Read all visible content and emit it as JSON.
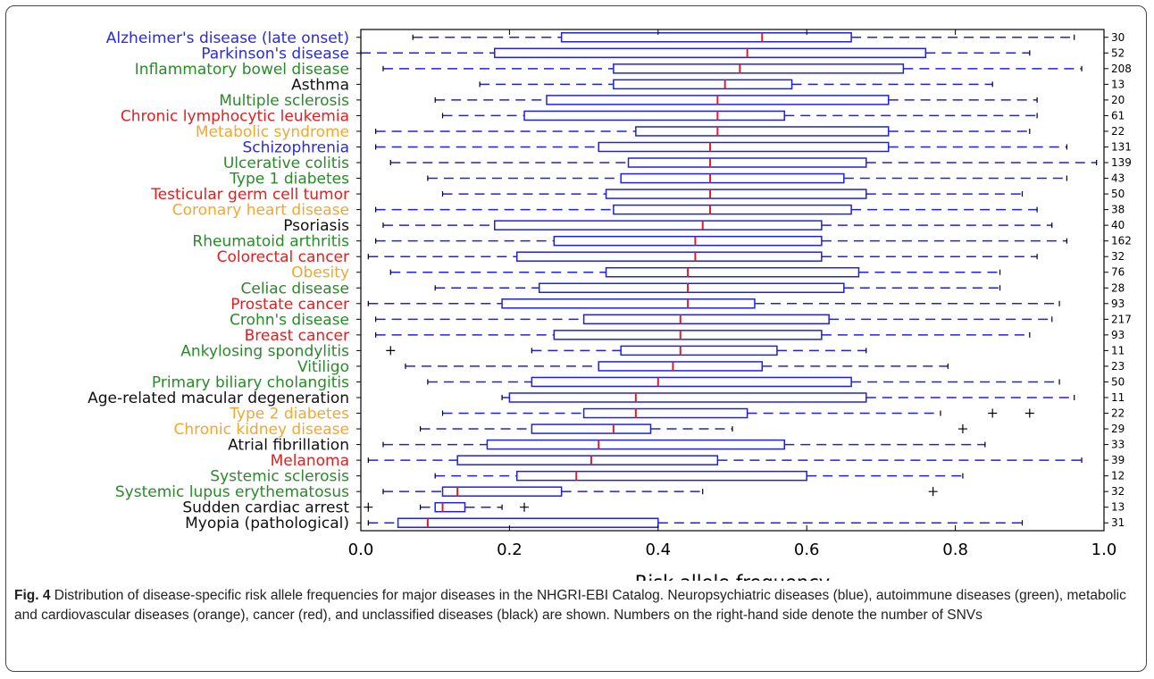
{
  "chart_data": {
    "type": "box",
    "xlabel": "Risk allele frequency",
    "xlim": [
      0.0,
      1.0
    ],
    "xticks": [
      "0.0",
      "0.2",
      "0.4",
      "0.6",
      "0.8",
      "1.0"
    ],
    "grid": false,
    "colors": {
      "neuropsychiatric": "#2a2ae0",
      "autoimmune": "#2a8a2a",
      "metabolic_cardiovascular": "#f0a830",
      "cancer": "#e02020",
      "unclassified": "#111111",
      "box": "#2020e0",
      "median": "#e02020"
    },
    "categories": [
      {
        "name": "Alzheimer's disease (late onset)",
        "group": "neuropsychiatric",
        "count": "30",
        "whislo": 0.07,
        "q1": 0.27,
        "med": 0.54,
        "q3": 0.66,
        "whishi": 0.96,
        "fliers": []
      },
      {
        "name": "Parkinson's disease",
        "group": "neuropsychiatric",
        "count": "52",
        "whislo": 0.0,
        "q1": 0.18,
        "med": 0.52,
        "q3": 0.76,
        "whishi": 0.9,
        "fliers": []
      },
      {
        "name": "Inflammatory bowel disease",
        "group": "autoimmune",
        "count": "208",
        "whislo": 0.03,
        "q1": 0.34,
        "med": 0.51,
        "q3": 0.73,
        "whishi": 0.97,
        "fliers": []
      },
      {
        "name": "Asthma",
        "group": "unclassified",
        "count": "13",
        "whislo": 0.16,
        "q1": 0.34,
        "med": 0.49,
        "q3": 0.58,
        "whishi": 0.85,
        "fliers": []
      },
      {
        "name": "Multiple sclerosis",
        "group": "autoimmune",
        "count": "20",
        "whislo": 0.1,
        "q1": 0.25,
        "med": 0.48,
        "q3": 0.71,
        "whishi": 0.91,
        "fliers": []
      },
      {
        "name": "Chronic lymphocytic leukemia",
        "group": "cancer",
        "count": "61",
        "whislo": 0.11,
        "q1": 0.22,
        "med": 0.48,
        "q3": 0.57,
        "whishi": 0.91,
        "fliers": []
      },
      {
        "name": "Metabolic syndrome",
        "group": "metabolic_cardiovascular",
        "count": "22",
        "whislo": 0.02,
        "q1": 0.37,
        "med": 0.48,
        "q3": 0.71,
        "whishi": 0.9,
        "fliers": []
      },
      {
        "name": "Schizophrenia",
        "group": "neuropsychiatric",
        "count": "131",
        "whislo": 0.02,
        "q1": 0.32,
        "med": 0.47,
        "q3": 0.71,
        "whishi": 0.95,
        "fliers": []
      },
      {
        "name": "Ulcerative colitis",
        "group": "autoimmune",
        "count": "139",
        "whislo": 0.04,
        "q1": 0.36,
        "med": 0.47,
        "q3": 0.68,
        "whishi": 0.99,
        "fliers": []
      },
      {
        "name": "Type 1 diabetes",
        "group": "autoimmune",
        "count": "43",
        "whislo": 0.09,
        "q1": 0.35,
        "med": 0.47,
        "q3": 0.65,
        "whishi": 0.95,
        "fliers": []
      },
      {
        "name": "Testicular germ cell tumor",
        "group": "cancer",
        "count": "50",
        "whislo": 0.11,
        "q1": 0.33,
        "med": 0.47,
        "q3": 0.68,
        "whishi": 0.89,
        "fliers": []
      },
      {
        "name": "Coronary heart disease",
        "group": "metabolic_cardiovascular",
        "count": "38",
        "whislo": 0.02,
        "q1": 0.34,
        "med": 0.47,
        "q3": 0.66,
        "whishi": 0.91,
        "fliers": []
      },
      {
        "name": "Psoriasis",
        "group": "unclassified",
        "count": "40",
        "whislo": 0.03,
        "q1": 0.18,
        "med": 0.46,
        "q3": 0.62,
        "whishi": 0.93,
        "fliers": []
      },
      {
        "name": "Rheumatoid arthritis",
        "group": "autoimmune",
        "count": "162",
        "whislo": 0.02,
        "q1": 0.26,
        "med": 0.45,
        "q3": 0.62,
        "whishi": 0.95,
        "fliers": []
      },
      {
        "name": "Colorectal cancer",
        "group": "cancer",
        "count": "32",
        "whislo": 0.01,
        "q1": 0.21,
        "med": 0.45,
        "q3": 0.62,
        "whishi": 0.91,
        "fliers": []
      },
      {
        "name": "Obesity",
        "group": "metabolic_cardiovascular",
        "count": "76",
        "whislo": 0.04,
        "q1": 0.33,
        "med": 0.44,
        "q3": 0.67,
        "whishi": 0.86,
        "fliers": []
      },
      {
        "name": "Celiac disease",
        "group": "autoimmune",
        "count": "28",
        "whislo": 0.1,
        "q1": 0.24,
        "med": 0.44,
        "q3": 0.65,
        "whishi": 0.86,
        "fliers": []
      },
      {
        "name": "Prostate cancer",
        "group": "cancer",
        "count": "93",
        "whislo": 0.01,
        "q1": 0.19,
        "med": 0.44,
        "q3": 0.53,
        "whishi": 0.94,
        "fliers": []
      },
      {
        "name": "Crohn's disease",
        "group": "autoimmune",
        "count": "217",
        "whislo": 0.02,
        "q1": 0.3,
        "med": 0.43,
        "q3": 0.63,
        "whishi": 0.93,
        "fliers": []
      },
      {
        "name": "Breast cancer",
        "group": "cancer",
        "count": "93",
        "whislo": 0.02,
        "q1": 0.26,
        "med": 0.43,
        "q3": 0.62,
        "whishi": 0.9,
        "fliers": []
      },
      {
        "name": "Ankylosing spondylitis",
        "group": "autoimmune",
        "count": "11",
        "whislo": 0.23,
        "q1": 0.35,
        "med": 0.43,
        "q3": 0.56,
        "whishi": 0.68,
        "fliers": [
          0.04
        ]
      },
      {
        "name": "Vitiligo",
        "group": "autoimmune",
        "count": "23",
        "whislo": 0.06,
        "q1": 0.32,
        "med": 0.42,
        "q3": 0.54,
        "whishi": 0.79,
        "fliers": []
      },
      {
        "name": "Primary biliary cholangitis",
        "group": "autoimmune",
        "count": "50",
        "whislo": 0.09,
        "q1": 0.23,
        "med": 0.4,
        "q3": 0.66,
        "whishi": 0.94,
        "fliers": []
      },
      {
        "name": "Age-related macular degeneration",
        "group": "unclassified",
        "count": "11",
        "whislo": 0.19,
        "q1": 0.2,
        "med": 0.37,
        "q3": 0.68,
        "whishi": 0.96,
        "fliers": []
      },
      {
        "name": "Type 2 diabetes",
        "group": "metabolic_cardiovascular",
        "count": "22",
        "whislo": 0.11,
        "q1": 0.3,
        "med": 0.37,
        "q3": 0.52,
        "whishi": 0.78,
        "fliers": [
          0.85,
          0.9
        ]
      },
      {
        "name": "Chronic kidney disease",
        "group": "metabolic_cardiovascular",
        "count": "29",
        "whislo": 0.08,
        "q1": 0.23,
        "med": 0.34,
        "q3": 0.39,
        "whishi": 0.5,
        "fliers": [
          0.81
        ]
      },
      {
        "name": "Atrial fibrillation",
        "group": "unclassified",
        "count": "33",
        "whislo": 0.03,
        "q1": 0.17,
        "med": 0.32,
        "q3": 0.57,
        "whishi": 0.84,
        "fliers": []
      },
      {
        "name": "Melanoma",
        "group": "cancer",
        "count": "39",
        "whislo": 0.01,
        "q1": 0.13,
        "med": 0.31,
        "q3": 0.48,
        "whishi": 0.97,
        "fliers": []
      },
      {
        "name": "Systemic sclerosis",
        "group": "autoimmune",
        "count": "12",
        "whislo": 0.1,
        "q1": 0.21,
        "med": 0.29,
        "q3": 0.6,
        "whishi": 0.81,
        "fliers": []
      },
      {
        "name": "Systemic lupus erythematosus",
        "group": "autoimmune",
        "count": "32",
        "whislo": 0.03,
        "q1": 0.11,
        "med": 0.13,
        "q3": 0.27,
        "whishi": 0.46,
        "fliers": [
          0.77
        ]
      },
      {
        "name": "Sudden cardiac arrest",
        "group": "unclassified",
        "count": "13",
        "whislo": 0.08,
        "q1": 0.1,
        "med": 0.11,
        "q3": 0.14,
        "whishi": 0.19,
        "fliers": [
          0.01,
          0.22
        ]
      },
      {
        "name": "Myopia (pathological)",
        "group": "unclassified",
        "count": "31",
        "whislo": 0.01,
        "q1": 0.05,
        "med": 0.09,
        "q3": 0.4,
        "whishi": 0.89,
        "fliers": []
      }
    ]
  },
  "caption": {
    "label": "Fig. 4",
    "text": " Distribution of disease-specific risk allele frequencies for major diseases in the NHGRI-EBI Catalog. Neuropsychiatric diseases (blue), autoimmune diseases (green), metabolic and cardiovascular diseases (orange), cancer (red), and unclassified diseases (black) are shown. Numbers on the right-hand side denote the number of SNVs"
  }
}
